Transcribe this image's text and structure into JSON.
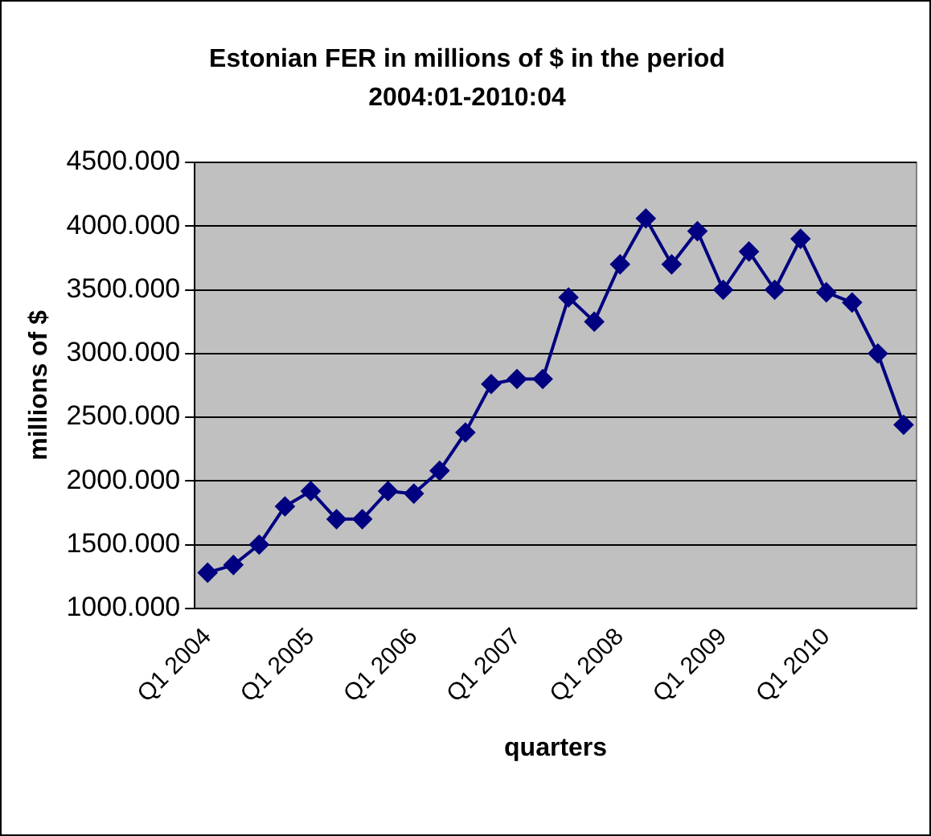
{
  "chart_data": {
    "type": "line",
    "title": "Estonian FER in millions of $ in the period 2004:01-2010:04",
    "xlabel": "quarters",
    "ylabel": "millions of $",
    "categories": [
      "Q1 2004",
      null,
      null,
      null,
      "Q1 2005",
      null,
      null,
      null,
      "Q1 2006",
      null,
      null,
      null,
      "Q1 2007",
      null,
      null,
      null,
      "Q1 2008",
      null,
      null,
      null,
      "Q1 2009",
      null,
      null,
      null,
      "Q1 2010",
      null,
      null,
      null
    ],
    "series": [
      {
        "color": "#000080",
        "values": [
          1280,
          1340,
          1500,
          1800,
          1920,
          1700,
          1700,
          1920,
          1900,
          2080,
          2380,
          2760,
          2800,
          2800,
          3440,
          3250,
          3700,
          4060,
          3700,
          3960,
          3500,
          3800,
          3500,
          3900,
          3480,
          3400,
          3000,
          2440
        ]
      }
    ],
    "ylim": [
      1000,
      4500
    ],
    "yticks": [
      {
        "value": 1000,
        "label": "1000.000"
      },
      {
        "value": 1500,
        "label": "1500.000"
      },
      {
        "value": 2000,
        "label": "2000.000"
      },
      {
        "value": 2500,
        "label": "2500.000"
      },
      {
        "value": 3000,
        "label": "3000.000"
      },
      {
        "value": 3500,
        "label": "3500.000"
      },
      {
        "value": 4000,
        "label": "4000.000"
      },
      {
        "value": 4500,
        "label": "4500.000"
      }
    ],
    "grid": "y",
    "marker": "diamond",
    "line_style": "solid",
    "legend": false
  }
}
